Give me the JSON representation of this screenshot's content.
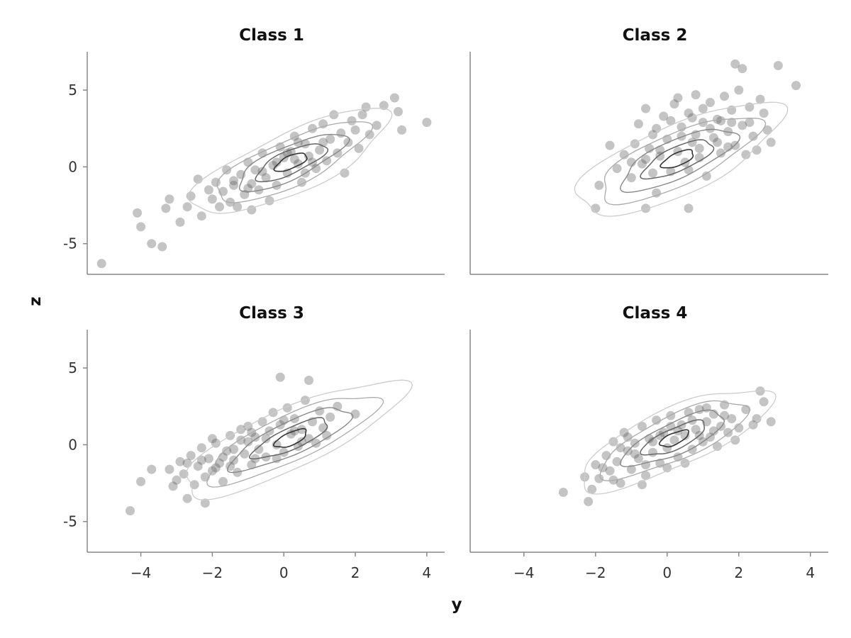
{
  "chart_data": {
    "type": "scatter",
    "xlabel": "y",
    "ylabel": "z",
    "xlim": [
      -5.5,
      4.5
    ],
    "ylim": [
      -7,
      7.5
    ],
    "xticks": [
      -4,
      -2,
      0,
      2,
      4
    ],
    "yticks": [
      -5,
      0,
      5
    ],
    "x_tick_labels": [
      "−4",
      "−2",
      "0",
      "2",
      "4"
    ],
    "y_tick_labels": [
      "-5",
      "0",
      "5"
    ],
    "grid": false,
    "point_color": "#555555",
    "contour_colors": [
      "#cccccc",
      "#aaaaaa",
      "#888888",
      "#666666",
      "#333333"
    ],
    "panels": [
      {
        "title": "Class 1",
        "center": [
          0.2,
          0.3
        ],
        "outliers": [
          [
            -5.1,
            -6.3
          ],
          [
            -4.1,
            -3.0
          ],
          [
            -4.0,
            -3.9
          ],
          [
            -3.7,
            -5.0
          ],
          [
            -3.4,
            -5.2
          ],
          [
            -3.3,
            -2.7
          ],
          [
            -3.2,
            -2.1
          ],
          [
            -2.9,
            -3.6
          ],
          [
            -2.7,
            -2.6
          ],
          [
            4.0,
            2.9
          ],
          [
            3.3,
            2.4
          ],
          [
            3.1,
            4.5
          ],
          [
            2.8,
            4.0
          ],
          [
            2.3,
            3.9
          ],
          [
            3.2,
            3.6
          ]
        ],
        "points": [
          [
            -2.6,
            -1.9
          ],
          [
            -2.4,
            -0.8
          ],
          [
            -2.3,
            -3.2
          ],
          [
            -2.1,
            -1.5
          ],
          [
            -2.0,
            -2.1
          ],
          [
            -1.9,
            -1.0
          ],
          [
            -1.8,
            -2.6
          ],
          [
            -1.7,
            -1.6
          ],
          [
            -1.6,
            -0.2
          ],
          [
            -1.5,
            -2.3
          ],
          [
            -1.4,
            -1.2
          ],
          [
            -1.3,
            -2.6
          ],
          [
            -1.2,
            -0.5
          ],
          [
            -1.1,
            -1.8
          ],
          [
            -1.0,
            0.3
          ],
          [
            -0.9,
            -1.1
          ],
          [
            -0.9,
            -2.8
          ],
          [
            -0.8,
            -0.2
          ],
          [
            -0.7,
            -1.5
          ],
          [
            -0.6,
            0.9
          ],
          [
            -0.5,
            -0.7
          ],
          [
            -0.4,
            -2.2
          ],
          [
            -0.3,
            0.1
          ],
          [
            -0.2,
            -1.2
          ],
          [
            -0.1,
            1.3
          ],
          [
            0.0,
            0.6
          ],
          [
            0.1,
            -0.4
          ],
          [
            0.2,
            1.0
          ],
          [
            0.3,
            2.0
          ],
          [
            0.4,
            0.2
          ],
          [
            0.5,
            -1.0
          ],
          [
            0.6,
            1.5
          ],
          [
            0.7,
            0.7
          ],
          [
            0.8,
            2.5
          ],
          [
            0.9,
            -0.1
          ],
          [
            1.0,
            1.1
          ],
          [
            1.1,
            2.8
          ],
          [
            1.2,
            0.4
          ],
          [
            1.3,
            1.8
          ],
          [
            1.4,
            3.4
          ],
          [
            1.5,
            0.9
          ],
          [
            1.6,
            2.2
          ],
          [
            1.7,
            -0.4
          ],
          [
            1.8,
            1.6
          ],
          [
            1.9,
            3.0
          ],
          [
            2.0,
            2.4
          ],
          [
            2.1,
            1.2
          ],
          [
            2.2,
            3.4
          ],
          [
            2.4,
            2.1
          ],
          [
            2.6,
            2.7
          ],
          [
            -1.4,
            -0.9
          ],
          [
            -0.6,
            -0.3
          ],
          [
            0.1,
            0.9
          ],
          [
            0.4,
            1.6
          ],
          [
            0.8,
            0.3
          ],
          [
            -0.2,
            0.3
          ],
          [
            0.6,
            -0.4
          ],
          [
            1.1,
            1.6
          ],
          [
            -1.0,
            -1.4
          ],
          [
            0.3,
            0.5
          ]
        ],
        "contours": [
          {
            "level": 1,
            "rx": 3.1,
            "ry": 0.95
          },
          {
            "level": 2,
            "rx": 2.4,
            "ry": 0.72
          },
          {
            "level": 3,
            "rx": 1.7,
            "ry": 0.52
          },
          {
            "level": 4,
            "rx": 1.1,
            "ry": 0.36
          },
          {
            "level": 5,
            "rx": 0.5,
            "ry": 0.2
          }
        ]
      },
      {
        "title": "Class 2",
        "center": [
          0.3,
          0.5
        ],
        "outliers": [
          [
            -2.0,
            -2.7
          ],
          [
            -0.6,
            -2.7
          ],
          [
            0.6,
            -2.7
          ],
          [
            1.9,
            6.7
          ],
          [
            2.1,
            6.4
          ],
          [
            3.1,
            6.6
          ],
          [
            3.6,
            5.3
          ],
          [
            2.9,
            1.6
          ],
          [
            2.6,
            4.4
          ],
          [
            -0.3,
            -1.7
          ]
        ],
        "points": [
          [
            -1.9,
            -1.2
          ],
          [
            -1.6,
            1.4
          ],
          [
            -1.4,
            -0.1
          ],
          [
            -1.2,
            0.8
          ],
          [
            -1.0,
            -0.7
          ],
          [
            -0.9,
            1.5
          ],
          [
            -0.8,
            2.8
          ],
          [
            -0.7,
            0.2
          ],
          [
            -0.6,
            3.8
          ],
          [
            -0.5,
            1.2
          ],
          [
            -0.4,
            -0.4
          ],
          [
            -0.3,
            2.5
          ],
          [
            -0.2,
            0.7
          ],
          [
            -0.1,
            3.3
          ],
          [
            0.0,
            1.8
          ],
          [
            0.1,
            -0.3
          ],
          [
            0.2,
            4.1
          ],
          [
            0.3,
            1.0
          ],
          [
            0.4,
            2.6
          ],
          [
            0.5,
            0.3
          ],
          [
            0.6,
            3.5
          ],
          [
            0.7,
            1.6
          ],
          [
            0.8,
            4.7
          ],
          [
            0.9,
            0.6
          ],
          [
            1.0,
            2.9
          ],
          [
            1.1,
            -0.6
          ],
          [
            1.2,
            4.2
          ],
          [
            1.3,
            1.9
          ],
          [
            1.4,
            3.1
          ],
          [
            1.5,
            0.9
          ],
          [
            1.6,
            4.6
          ],
          [
            1.7,
            2.3
          ],
          [
            1.8,
            3.7
          ],
          [
            1.9,
            1.4
          ],
          [
            2.0,
            5.0
          ],
          [
            2.1,
            2.7
          ],
          [
            2.2,
            0.8
          ],
          [
            2.3,
            3.9
          ],
          [
            2.4,
            2.0
          ],
          [
            2.5,
            1.1
          ],
          [
            2.7,
            3.5
          ],
          [
            2.8,
            2.4
          ],
          [
            -0.2,
            1.1
          ],
          [
            0.4,
            2.0
          ],
          [
            0.9,
            1.2
          ],
          [
            1.2,
            2.5
          ],
          [
            -0.6,
            0.5
          ],
          [
            0.6,
            -0.2
          ],
          [
            1.5,
            3.0
          ],
          [
            0.1,
            3.0
          ],
          [
            1.0,
            3.8
          ],
          [
            1.8,
            2.9
          ],
          [
            -1.0,
            0.3
          ],
          [
            0.3,
            4.5
          ],
          [
            2.3,
            2.9
          ],
          [
            0.7,
            3.2
          ],
          [
            1.4,
            1.6
          ],
          [
            -0.4,
            2.1
          ],
          [
            0.8,
            2.1
          ],
          [
            1.7,
            1.3
          ]
        ],
        "contours": [
          {
            "level": 1,
            "rx": 3.2,
            "ry": 1.1
          },
          {
            "level": 2,
            "rx": 2.5,
            "ry": 0.82
          },
          {
            "level": 3,
            "rx": 1.8,
            "ry": 0.6
          },
          {
            "level": 4,
            "rx": 1.1,
            "ry": 0.38
          },
          {
            "level": 5,
            "rx": 0.5,
            "ry": 0.2
          }
        ]
      },
      {
        "title": "Class 3",
        "center": [
          0.2,
          0.4
        ],
        "outliers": [
          [
            -4.3,
            -4.3
          ],
          [
            -4.0,
            -2.4
          ],
          [
            -3.7,
            -1.6
          ],
          [
            -3.1,
            -2.7
          ],
          [
            -2.7,
            -3.5
          ],
          [
            -2.2,
            -3.8
          ],
          [
            -0.1,
            4.4
          ],
          [
            0.7,
            4.2
          ],
          [
            2.0,
            2.0
          ],
          [
            1.5,
            2.5
          ]
        ],
        "points": [
          [
            -3.2,
            -1.6
          ],
          [
            -3.0,
            -2.3
          ],
          [
            -2.9,
            -1.1
          ],
          [
            -2.8,
            -1.9
          ],
          [
            -2.6,
            -0.7
          ],
          [
            -2.5,
            -2.6
          ],
          [
            -2.4,
            -1.4
          ],
          [
            -2.3,
            -0.2
          ],
          [
            -2.2,
            -2.1
          ],
          [
            -2.1,
            -0.9
          ],
          [
            -2.0,
            -1.7
          ],
          [
            -1.9,
            0.1
          ],
          [
            -1.8,
            -1.2
          ],
          [
            -1.7,
            -2.4
          ],
          [
            -1.6,
            -0.4
          ],
          [
            -1.5,
            0.6
          ],
          [
            -1.4,
            -1.0
          ],
          [
            -1.3,
            -1.8
          ],
          [
            -1.2,
            0.3
          ],
          [
            -1.1,
            -0.6
          ],
          [
            -1.0,
            1.2
          ],
          [
            -0.9,
            -1.3
          ],
          [
            -0.8,
            0.5
          ],
          [
            -0.7,
            -0.3
          ],
          [
            -0.6,
            1.5
          ],
          [
            -0.5,
            -0.8
          ],
          [
            -0.4,
            0.9
          ],
          [
            -0.3,
            2.1
          ],
          [
            -0.2,
            0.0
          ],
          [
            -0.1,
            1.3
          ],
          [
            0.0,
            -0.5
          ],
          [
            0.1,
            2.4
          ],
          [
            0.2,
            0.7
          ],
          [
            0.3,
            1.7
          ],
          [
            0.4,
            -0.1
          ],
          [
            0.5,
            1.0
          ],
          [
            0.6,
            2.9
          ],
          [
            0.7,
            0.4
          ],
          [
            0.8,
            1.5
          ],
          [
            0.9,
            0.1
          ],
          [
            1.0,
            2.2
          ],
          [
            1.1,
            1.1
          ],
          [
            1.2,
            0.6
          ],
          [
            1.3,
            1.8
          ],
          [
            -1.7,
            -0.8
          ],
          [
            -1.0,
            0.2
          ],
          [
            -0.5,
            0.4
          ],
          [
            0.3,
            0.9
          ],
          [
            -2.3,
            -1.0
          ],
          [
            -1.4,
            -0.3
          ],
          [
            -0.8,
            -0.9
          ],
          [
            0.0,
            1.6
          ],
          [
            -2.7,
            -1.2
          ],
          [
            -1.9,
            -1.5
          ],
          [
            -1.2,
            1.0
          ],
          [
            -0.2,
            -0.9
          ],
          [
            0.5,
            0.2
          ],
          [
            -2.0,
            0.4
          ],
          [
            -0.9,
            0.8
          ],
          [
            -1.5,
            -1.4
          ]
        ],
        "contours": [
          {
            "level": 1,
            "rx": 3.5,
            "ry": 0.95
          },
          {
            "level": 2,
            "rx": 2.7,
            "ry": 0.72
          },
          {
            "level": 3,
            "rx": 1.9,
            "ry": 0.52
          },
          {
            "level": 4,
            "rx": 1.2,
            "ry": 0.34
          },
          {
            "level": 5,
            "rx": 0.5,
            "ry": 0.2
          }
        ]
      },
      {
        "title": "Class 4",
        "center": [
          0.2,
          0.4
        ],
        "outliers": [
          [
            -2.9,
            -3.1
          ],
          [
            -2.2,
            -3.7
          ],
          [
            -2.1,
            -2.9
          ],
          [
            -2.3,
            -2.1
          ],
          [
            2.6,
            3.5
          ],
          [
            2.7,
            2.8
          ],
          [
            2.9,
            1.5
          ],
          [
            2.5,
            1.7
          ]
        ],
        "points": [
          [
            -2.0,
            -1.3
          ],
          [
            -1.9,
            -2.2
          ],
          [
            -1.7,
            -0.7
          ],
          [
            -1.6,
            -1.7
          ],
          [
            -1.5,
            0.2
          ],
          [
            -1.4,
            -1.1
          ],
          [
            -1.3,
            -2.5
          ],
          [
            -1.2,
            0.8
          ],
          [
            -1.1,
            -0.4
          ],
          [
            -1.0,
            -1.6
          ],
          [
            -0.9,
            0.1
          ],
          [
            -0.8,
            -0.9
          ],
          [
            -0.7,
            1.2
          ],
          [
            -0.6,
            -2.0
          ],
          [
            -0.5,
            0.4
          ],
          [
            -0.4,
            -0.5
          ],
          [
            -0.3,
            1.6
          ],
          [
            -0.2,
            -1.2
          ],
          [
            -0.1,
            0.8
          ],
          [
            0.0,
            -0.2
          ],
          [
            0.1,
            1.9
          ],
          [
            0.2,
            0.3
          ],
          [
            0.3,
            -0.8
          ],
          [
            0.4,
            1.3
          ],
          [
            0.5,
            0.6
          ],
          [
            0.6,
            2.1
          ],
          [
            0.7,
            -0.3
          ],
          [
            0.8,
            1.0
          ],
          [
            0.9,
            2.3
          ],
          [
            1.0,
            0.2
          ],
          [
            1.1,
            1.5
          ],
          [
            1.2,
            0.5
          ],
          [
            1.3,
            2.0
          ],
          [
            1.4,
            -0.1
          ],
          [
            1.5,
            1.2
          ],
          [
            1.6,
            2.6
          ],
          [
            1.7,
            0.8
          ],
          [
            1.8,
            1.7
          ],
          [
            1.9,
            0.3
          ],
          [
            2.0,
            1.1
          ],
          [
            2.2,
            2.3
          ],
          [
            2.4,
            1.3
          ],
          [
            -1.8,
            -1.5
          ],
          [
            -0.9,
            -0.6
          ],
          [
            -0.4,
            0.2
          ],
          [
            0.3,
            0.9
          ],
          [
            0.9,
            0.6
          ],
          [
            -1.3,
            -0.2
          ],
          [
            -0.6,
            -1.3
          ],
          [
            0.1,
            1.2
          ],
          [
            0.7,
            1.6
          ],
          [
            1.3,
            0.9
          ],
          [
            -1.5,
            -2.3
          ],
          [
            -0.7,
            -2.6
          ],
          [
            -0.2,
            0.6
          ],
          [
            0.5,
            -1.2
          ],
          [
            1.1,
            2.4
          ],
          [
            -1.1,
            0.5
          ],
          [
            0.0,
            -1.5
          ],
          [
            1.6,
            1.9
          ]
        ],
        "contours": [
          {
            "level": 1,
            "rx": 3.0,
            "ry": 0.92
          },
          {
            "level": 2,
            "rx": 2.3,
            "ry": 0.7
          },
          {
            "level": 3,
            "rx": 1.6,
            "ry": 0.5
          },
          {
            "level": 4,
            "rx": 1.0,
            "ry": 0.33
          },
          {
            "level": 5,
            "rx": 0.45,
            "ry": 0.18
          }
        ]
      }
    ]
  }
}
